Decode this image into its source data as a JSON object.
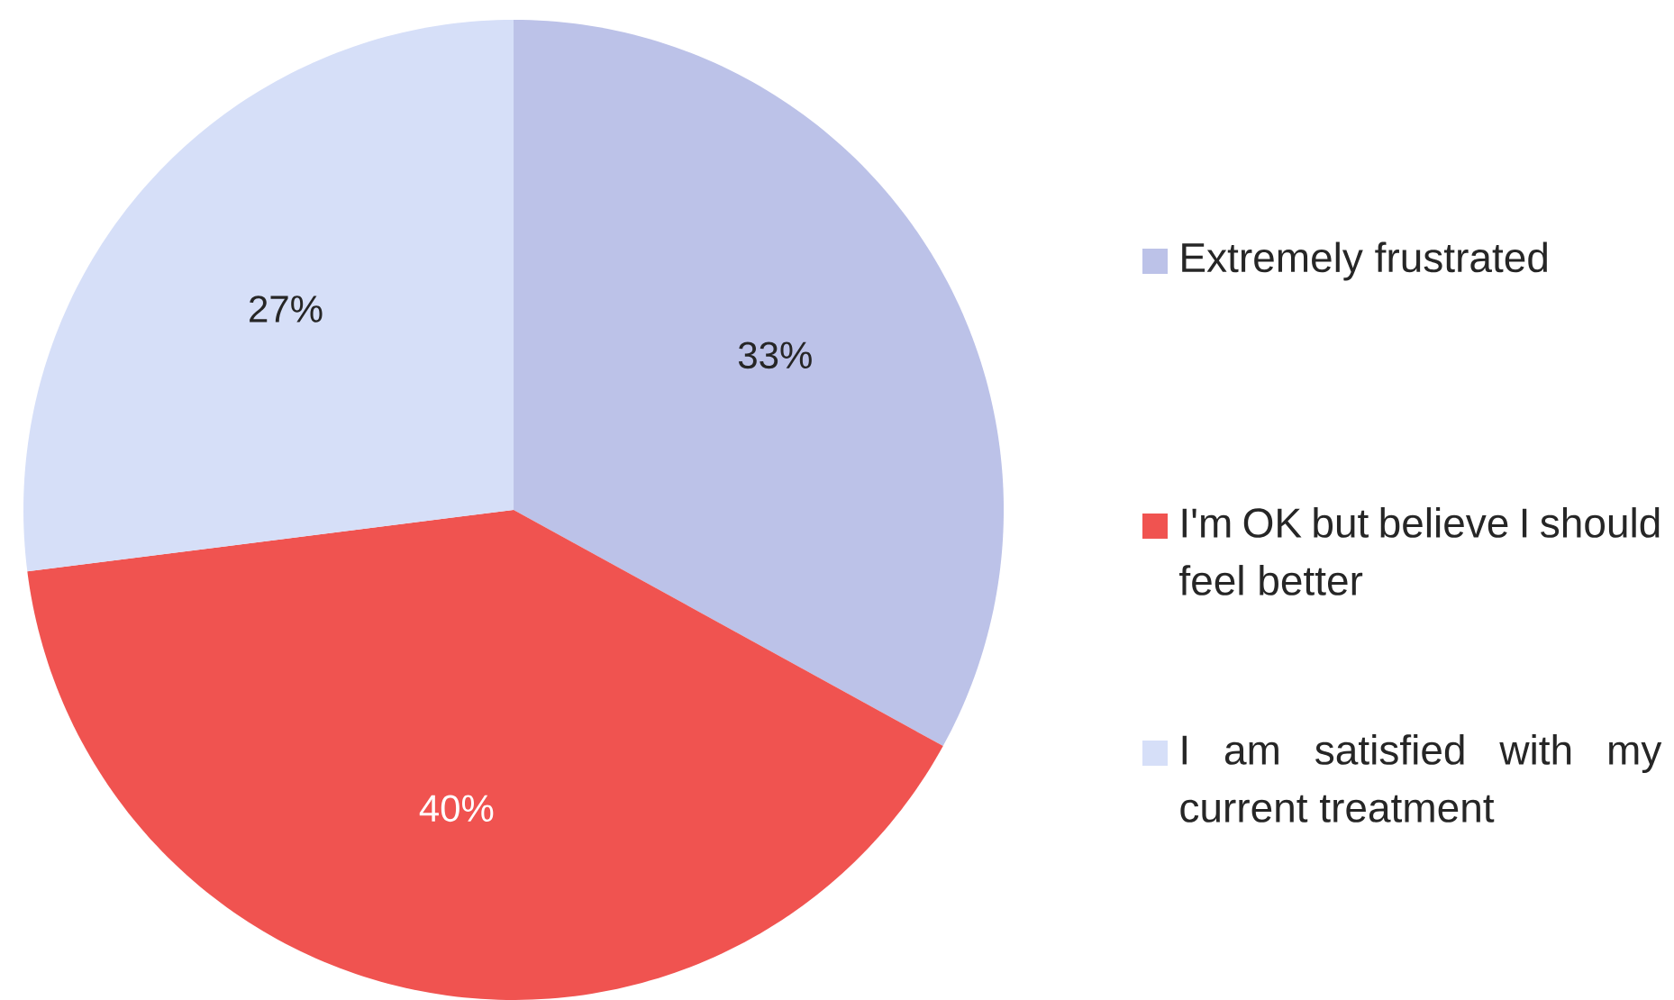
{
  "chart_data": {
    "type": "pie",
    "categories": [
      "Extremely frustrated",
      "I'm OK but believe I should feel better",
      "I am satisfied with my current treatment"
    ],
    "values": [
      33,
      40,
      27
    ],
    "colors": [
      "#bcc2e8",
      "#f05350",
      "#d6dff8"
    ],
    "data_labels": true,
    "value_labels": [
      "33%",
      "40%",
      "27%"
    ],
    "legend": "right"
  }
}
